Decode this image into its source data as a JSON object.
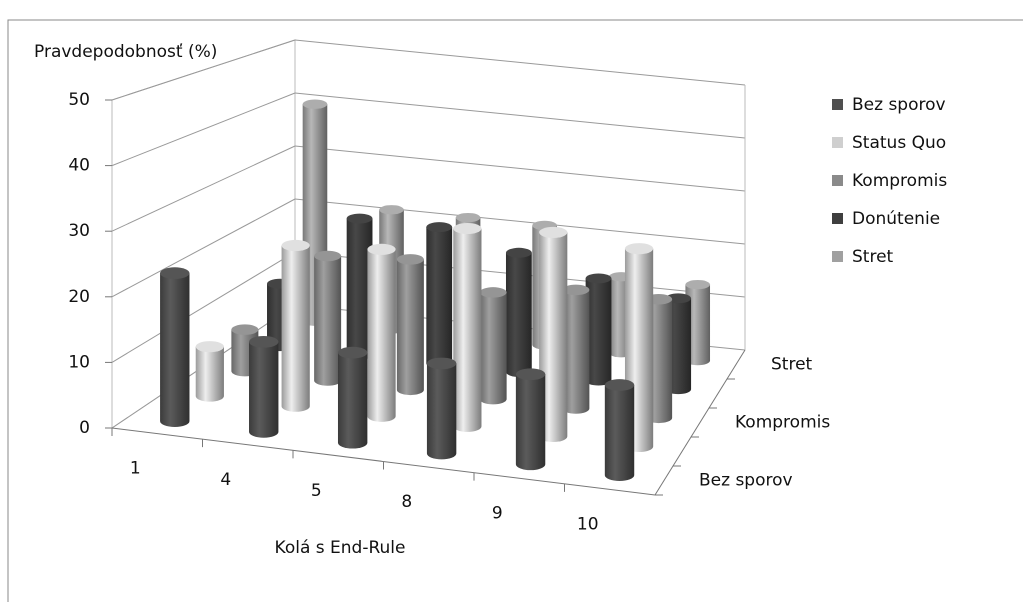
{
  "chart_data": {
    "type": "bar3d",
    "y_axis_title": "Pravdepodobnosť (%)",
    "x_axis_title": "Kolá s End-Rule",
    "categories": [
      "1",
      "4",
      "5",
      "8",
      "9",
      "10"
    ],
    "depth_labels": [
      "Bez sporov",
      null,
      "Kompromis",
      null,
      "Stret"
    ],
    "ylim": [
      0,
      50
    ],
    "yticks": [
      0,
      10,
      20,
      30,
      40,
      50
    ],
    "grid": true,
    "legend": "right",
    "series": [
      {
        "name": "Bez sporov",
        "color": "#4f4f4f",
        "values": [
          23,
          14,
          14,
          14,
          14,
          14
        ]
      },
      {
        "name": "Status Quo",
        "color": "#cfcfcf",
        "values": [
          8,
          26,
          27,
          32,
          33,
          32
        ]
      },
      {
        "name": "Kompromis",
        "color": "#8a8a8a",
        "values": [
          7,
          21,
          22,
          18,
          20,
          20
        ]
      },
      {
        "name": "Donútenie",
        "color": "#3f3f3f",
        "values": [
          11,
          24,
          24,
          21,
          18,
          16
        ]
      },
      {
        "name": "Stret",
        "color": "#a0a0a0",
        "values": [
          40,
          22,
          22,
          22,
          14,
          14
        ]
      }
    ]
  }
}
